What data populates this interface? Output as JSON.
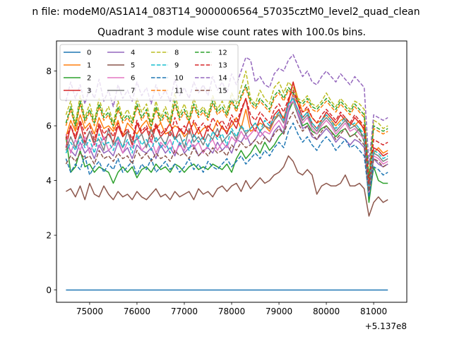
{
  "figure": {
    "suptitle": "n file: modeM0/AS1A14_083T14_9000006564_57035cztM0_level2_quad_clean",
    "title": "Quadrant 3 module wise count rates with 100.0s bins."
  },
  "chart_data": {
    "type": "line",
    "title": "Quadrant 3 module wise count rates with 100.0s bins.",
    "xlabel": "",
    "ylabel": "",
    "x_offset_label": "+5.137e8",
    "xlim": [
      74300,
      81700
    ],
    "ylim": [
      -0.45,
      9.1
    ],
    "xticks": [
      75000,
      76000,
      77000,
      78000,
      79000,
      80000,
      81000
    ],
    "xtick_labels": [
      "75000",
      "76000",
      "77000",
      "78000",
      "79000",
      "80000",
      "81000"
    ],
    "yticks": [
      0,
      2,
      4,
      6,
      8
    ],
    "ytick_labels": [
      "0",
      "2",
      "4",
      "6",
      "8"
    ],
    "grid": false,
    "legend_position": "upper-left",
    "x_start": 74500,
    "x_step": 100,
    "series": [
      {
        "name": "0",
        "color": "#1f77b4",
        "dash": "solid",
        "values": [
          0,
          0,
          0,
          0,
          0,
          0,
          0,
          0,
          0,
          0,
          0,
          0,
          0,
          0,
          0,
          0,
          0,
          0,
          0,
          0,
          0,
          0,
          0,
          0,
          0,
          0,
          0,
          0,
          0,
          0,
          0,
          0,
          0,
          0,
          0,
          0,
          0,
          0,
          0,
          0,
          0,
          0,
          0,
          0,
          0,
          0,
          0,
          0,
          0,
          0,
          0,
          0,
          0,
          0,
          0,
          0,
          0,
          0,
          0,
          0,
          0,
          0,
          0,
          0,
          0,
          0,
          0,
          0,
          0
        ]
      },
      {
        "name": "1",
        "color": "#ff7f0e",
        "dash": "solid",
        "values": [
          5.6,
          6.2,
          5.8,
          6.4,
          5.9,
          6.1,
          5.7,
          6.3,
          5.9,
          6.0,
          5.8,
          6.2,
          5.6,
          6.1,
          5.9,
          5.7,
          6.0,
          6.2,
          5.8,
          5.9,
          6.1,
          5.7,
          5.8,
          6.0,
          5.9,
          5.6,
          5.8,
          6.1,
          5.7,
          5.9,
          6.0,
          5.8,
          6.2,
          5.9,
          5.8,
          6.0,
          6.3,
          5.9,
          6.6,
          5.8,
          5.9,
          6.1,
          6.0,
          5.8,
          6.2,
          6.5,
          6.3,
          6.8,
          7.6,
          7.0,
          6.5,
          6.6,
          6.3,
          6.1,
          6.2,
          6.4,
          6.2,
          6.0,
          6.2,
          6.3,
          6.1,
          6.0,
          6.2,
          5.8,
          3.6,
          5.0,
          5.2,
          5.0,
          5.1
        ]
      },
      {
        "name": "2",
        "color": "#2ca02c",
        "dash": "solid",
        "values": [
          5.6,
          4.3,
          4.5,
          5.1,
          4.5,
          4.6,
          4.3,
          4.5,
          4.4,
          4.3,
          3.9,
          4.3,
          4.5,
          4.3,
          4.5,
          4.1,
          4.4,
          4.5,
          4.3,
          4.6,
          4.4,
          4.5,
          4.3,
          4.6,
          4.5,
          4.3,
          4.5,
          4.6,
          4.4,
          4.5,
          4.4,
          4.6,
          4.5,
          4.4,
          4.6,
          4.3,
          4.8,
          5.1,
          4.8,
          5.0,
          5.3,
          5.0,
          5.4,
          5.1,
          5.3,
          5.6,
          5.8,
          6.5,
          6.9,
          6.4,
          6.0,
          6.1,
          5.8,
          5.7,
          5.9,
          6.0,
          5.8,
          5.6,
          5.8,
          5.9,
          5.6,
          5.7,
          5.9,
          5.4,
          3.2,
          4.5,
          4.0,
          3.9,
          3.9
        ]
      },
      {
        "name": "3",
        "color": "#d62728",
        "dash": "solid",
        "values": [
          5.2,
          6.0,
          5.5,
          6.1,
          5.4,
          5.8,
          5.3,
          6.0,
          5.5,
          5.7,
          5.4,
          6.0,
          5.6,
          5.8,
          5.3,
          6.1,
          5.7,
          5.9,
          5.4,
          6.0,
          5.6,
          5.8,
          6.1,
          5.5,
          5.9,
          5.7,
          6.2,
          5.6,
          5.9,
          5.5,
          6.0,
          5.8,
          5.6,
          6.0,
          5.7,
          6.2,
          5.9,
          6.5,
          7.0,
          6.1,
          5.8,
          6.3,
          6.0,
          5.9,
          6.4,
          6.6,
          6.2,
          6.9,
          7.6,
          6.8,
          6.3,
          6.5,
          6.1,
          5.9,
          6.2,
          6.5,
          6.3,
          6.1,
          6.4,
          6.2,
          6.0,
          6.3,
          6.1,
          5.9,
          3.8,
          5.2,
          5.1,
          4.9,
          5.0
        ]
      },
      {
        "name": "4",
        "color": "#9467bd",
        "dash": "solid",
        "values": [
          5.3,
          5.1,
          4.9,
          5.4,
          5.0,
          5.2,
          4.8,
          5.3,
          5.0,
          5.1,
          4.9,
          5.4,
          5.0,
          5.2,
          4.8,
          5.3,
          5.1,
          5.0,
          5.2,
          4.8,
          5.3,
          5.0,
          5.2,
          4.9,
          5.4,
          5.0,
          5.2,
          5.3,
          4.9,
          5.1,
          5.2,
          5.0,
          5.4,
          5.1,
          5.3,
          5.0,
          5.5,
          5.4,
          5.7,
          5.3,
          5.5,
          5.8,
          5.6,
          5.4,
          5.8,
          6.0,
          5.7,
          6.5,
          7.2,
          6.4,
          5.9,
          6.0,
          5.6,
          5.5,
          5.7,
          5.9,
          5.7,
          5.4,
          5.6,
          5.5,
          5.3,
          5.5,
          5.4,
          5.2,
          3.5,
          4.8,
          4.6,
          4.5,
          4.6
        ]
      },
      {
        "name": "5",
        "color": "#8c564b",
        "dash": "solid",
        "values": [
          3.6,
          3.7,
          3.4,
          3.8,
          3.3,
          3.9,
          3.5,
          3.4,
          3.8,
          3.5,
          3.3,
          3.6,
          3.4,
          3.5,
          3.3,
          3.6,
          3.4,
          3.3,
          3.5,
          3.7,
          3.4,
          3.5,
          3.3,
          3.6,
          3.4,
          3.5,
          3.6,
          3.3,
          3.7,
          3.5,
          3.6,
          3.4,
          3.7,
          3.8,
          3.6,
          3.8,
          3.9,
          3.6,
          4.0,
          3.7,
          3.9,
          4.1,
          3.9,
          4.0,
          4.2,
          4.3,
          4.5,
          4.9,
          4.7,
          4.3,
          4.2,
          4.4,
          4.2,
          3.5,
          3.8,
          3.9,
          3.8,
          3.8,
          3.9,
          4.2,
          3.8,
          3.8,
          3.9,
          3.7,
          2.7,
          3.2,
          3.4,
          3.2,
          3.3
        ]
      },
      {
        "name": "6",
        "color": "#e377c2",
        "dash": "solid",
        "values": [
          5.7,
          5.0,
          5.5,
          5.1,
          5.6,
          5.0,
          5.4,
          5.2,
          5.6,
          5.1,
          5.3,
          5.5,
          5.0,
          5.4,
          5.2,
          5.6,
          5.1,
          5.3,
          5.5,
          5.0,
          5.4,
          5.2,
          5.5,
          5.0,
          5.3,
          5.1,
          5.5,
          5.2,
          5.4,
          5.0,
          5.3,
          5.5,
          5.1,
          5.4,
          5.2,
          5.6,
          5.4,
          5.8,
          5.5,
          5.7,
          5.9,
          5.6,
          5.8,
          5.7,
          6.0,
          6.2,
          5.9,
          6.7,
          6.9,
          6.5,
          6.1,
          6.3,
          5.9,
          5.7,
          6.0,
          6.2,
          6.0,
          5.7,
          5.9,
          6.1,
          5.8,
          5.9,
          5.7,
          5.5,
          3.5,
          4.9,
          4.8,
          4.6,
          4.7
        ]
      },
      {
        "name": "7",
        "color": "#7f7f7f",
        "dash": "solid",
        "values": [
          5.1,
          5.6,
          5.2,
          5.7,
          5.3,
          5.8,
          5.4,
          5.5,
          5.1,
          5.9,
          5.3,
          5.6,
          5.2,
          5.8,
          5.4,
          5.5,
          5.7,
          5.2,
          5.9,
          5.4,
          5.6,
          5.3,
          5.8,
          5.5,
          5.7,
          5.2,
          5.9,
          5.4,
          5.6,
          5.3,
          5.7,
          5.5,
          5.9,
          5.4,
          5.6,
          5.8,
          5.5,
          6.0,
          5.7,
          5.9,
          6.1,
          5.8,
          6.0,
          5.9,
          6.2,
          6.4,
          6.1,
          6.8,
          7.0,
          6.6,
          6.2,
          6.4,
          6.0,
          5.8,
          6.1,
          6.3,
          6.1,
          5.8,
          6.0,
          6.2,
          5.9,
          6.0,
          5.8,
          5.6,
          3.7,
          5.0,
          4.9,
          4.7,
          4.8
        ]
      },
      {
        "name": "8",
        "color": "#bcbd22",
        "dash": "dashed",
        "values": [
          6.4,
          6.9,
          6.1,
          7.1,
          6.3,
          6.8,
          6.2,
          7.0,
          6.4,
          6.7,
          6.1,
          6.9,
          6.3,
          6.6,
          6.2,
          7.0,
          6.5,
          6.8,
          6.1,
          6.9,
          6.3,
          6.7,
          6.2,
          7.2,
          6.4,
          6.8,
          6.3,
          7.0,
          6.5,
          6.7,
          6.4,
          7.1,
          6.6,
          6.9,
          6.5,
          7.2,
          6.8,
          7.4,
          8.0,
          7.0,
          6.8,
          7.3,
          7.0,
          6.8,
          7.4,
          7.6,
          7.2,
          7.6,
          7.4,
          7.0,
          6.9,
          7.1,
          6.8,
          6.7,
          6.9,
          7.2,
          6.9,
          6.7,
          7.0,
          6.8,
          6.6,
          6.9,
          6.8,
          6.6,
          4.0,
          6.2,
          6.1,
          5.9,
          6.0
        ]
      },
      {
        "name": "9",
        "color": "#17becf",
        "dash": "dashed",
        "values": [
          5.0,
          5.4,
          5.1,
          5.6,
          5.2,
          5.5,
          5.0,
          5.7,
          5.3,
          5.4,
          5.1,
          5.6,
          5.2,
          5.5,
          5.0,
          5.7,
          5.3,
          5.5,
          5.1,
          5.6,
          5.2,
          5.4,
          5.0,
          5.6,
          5.3,
          5.5,
          5.1,
          5.7,
          5.4,
          5.6,
          5.2,
          5.8,
          5.5,
          5.7,
          5.3,
          5.9,
          5.6,
          6.0,
          5.8,
          5.9,
          6.1,
          5.8,
          6.2,
          6.0,
          6.3,
          6.5,
          6.2,
          6.8,
          7.0,
          6.6,
          6.3,
          6.5,
          6.1,
          5.9,
          6.2,
          6.4,
          6.2,
          5.9,
          6.1,
          6.3,
          6.0,
          6.1,
          5.9,
          5.7,
          3.8,
          5.1,
          5.0,
          4.8,
          4.9
        ]
      },
      {
        "name": "10",
        "color": "#1f77b4",
        "dash": "dashed",
        "values": [
          4.8,
          4.3,
          4.6,
          4.4,
          4.9,
          4.2,
          4.5,
          4.7,
          4.3,
          4.6,
          4.4,
          4.8,
          4.3,
          4.5,
          4.7,
          4.2,
          4.6,
          4.4,
          4.8,
          4.3,
          4.5,
          4.7,
          4.4,
          4.6,
          4.3,
          4.5,
          4.8,
          4.4,
          4.6,
          4.3,
          4.7,
          4.5,
          4.4,
          4.6,
          4.8,
          4.5,
          4.7,
          4.9,
          4.6,
          4.8,
          5.0,
          4.8,
          5.1,
          4.9,
          5.2,
          5.4,
          5.2,
          5.8,
          6.1,
          5.7,
          5.4,
          5.6,
          5.3,
          5.1,
          5.4,
          5.6,
          5.4,
          5.1,
          5.3,
          5.5,
          5.2,
          5.3,
          5.1,
          4.9,
          3.4,
          4.5,
          4.4,
          4.2,
          4.3
        ]
      },
      {
        "name": "11",
        "color": "#ff7f0e",
        "dash": "dashed",
        "values": [
          6.0,
          6.6,
          5.9,
          6.8,
          6.1,
          6.5,
          6.0,
          6.7,
          6.2,
          6.4,
          5.9,
          6.6,
          6.1,
          6.3,
          6.0,
          6.7,
          6.2,
          6.5,
          5.9,
          6.6,
          6.1,
          6.4,
          6.0,
          6.8,
          6.2,
          6.5,
          6.1,
          6.7,
          6.3,
          6.5,
          6.2,
          6.8,
          6.4,
          6.6,
          6.3,
          6.9,
          6.5,
          7.0,
          7.4,
          6.8,
          6.6,
          6.9,
          6.7,
          6.5,
          7.0,
          7.2,
          6.9,
          7.3,
          7.1,
          6.8,
          6.7,
          6.9,
          6.6,
          6.5,
          6.7,
          6.9,
          6.7,
          6.5,
          6.8,
          6.6,
          6.4,
          6.7,
          6.5,
          6.3,
          4.0,
          5.9,
          5.8,
          5.7,
          5.8
        ]
      },
      {
        "name": "12",
        "color": "#2ca02c",
        "dash": "dashed",
        "values": [
          6.1,
          6.7,
          6.0,
          6.9,
          6.2,
          6.6,
          6.1,
          6.8,
          6.3,
          6.5,
          6.0,
          6.7,
          6.2,
          6.4,
          6.1,
          6.8,
          6.3,
          6.6,
          6.0,
          6.7,
          6.2,
          6.5,
          6.1,
          6.9,
          6.3,
          6.6,
          6.2,
          6.8,
          6.4,
          6.6,
          6.3,
          6.9,
          6.5,
          6.7,
          6.4,
          7.0,
          6.6,
          7.1,
          7.5,
          6.9,
          6.7,
          7.0,
          6.8,
          6.6,
          7.1,
          7.3,
          7.0,
          7.4,
          7.2,
          6.9,
          6.8,
          7.0,
          6.7,
          6.6,
          6.8,
          7.0,
          6.8,
          6.6,
          6.9,
          6.7,
          6.5,
          6.8,
          6.6,
          6.4,
          4.1,
          6.0,
          5.9,
          5.8,
          5.9
        ]
      },
      {
        "name": "13",
        "color": "#d62728",
        "dash": "dashed",
        "values": [
          5.5,
          6.0,
          5.6,
          6.2,
          5.7,
          6.0,
          5.5,
          6.1,
          5.7,
          5.9,
          5.6,
          6.1,
          5.7,
          5.9,
          5.5,
          6.2,
          5.8,
          6.0,
          5.6,
          6.1,
          5.7,
          5.9,
          5.6,
          6.3,
          5.8,
          6.0,
          5.7,
          6.2,
          5.9,
          6.1,
          5.8,
          6.3,
          6.0,
          6.2,
          5.9,
          6.4,
          6.1,
          6.6,
          7.0,
          6.4,
          6.2,
          6.5,
          6.3,
          6.1,
          6.6,
          6.8,
          6.5,
          7.0,
          7.3,
          6.8,
          6.5,
          6.7,
          6.3,
          6.1,
          6.4,
          6.6,
          6.4,
          6.2,
          6.5,
          6.3,
          6.1,
          6.4,
          6.2,
          6.0,
          3.9,
          5.5,
          5.4,
          5.3,
          5.4
        ]
      },
      {
        "name": "14",
        "color": "#9467bd",
        "dash": "dashed",
        "values": [
          6.9,
          7.6,
          7.0,
          7.5,
          6.8,
          7.4,
          7.0,
          7.7,
          6.9,
          7.3,
          6.7,
          7.5,
          7.0,
          7.3,
          6.9,
          7.6,
          7.1,
          7.4,
          6.8,
          7.5,
          7.0,
          7.3,
          6.9,
          7.7,
          7.1,
          7.4,
          7.0,
          7.6,
          7.2,
          7.5,
          7.1,
          7.8,
          7.3,
          7.6,
          7.2,
          7.9,
          7.5,
          8.0,
          8.5,
          8.4,
          7.6,
          7.8,
          7.5,
          7.4,
          7.9,
          8.1,
          8.0,
          8.4,
          8.6,
          8.2,
          7.8,
          8.0,
          7.6,
          7.5,
          7.8,
          8.0,
          7.8,
          7.6,
          7.9,
          7.7,
          7.5,
          7.8,
          7.6,
          7.4,
          4.6,
          6.4,
          6.3,
          6.2,
          6.3
        ]
      },
      {
        "name": "15",
        "color": "#8c564b",
        "dash": "dashed",
        "values": [
          4.6,
          4.9,
          4.7,
          5.0,
          4.8,
          4.9,
          4.6,
          5.1,
          4.8,
          4.9,
          4.7,
          5.0,
          4.8,
          4.9,
          4.6,
          5.1,
          4.8,
          5.0,
          4.7,
          5.0,
          4.8,
          4.9,
          4.7,
          5.1,
          4.9,
          5.0,
          4.8,
          5.2,
          4.9,
          5.1,
          4.9,
          5.2,
          5.0,
          5.1,
          4.9,
          5.3,
          5.1,
          5.4,
          5.2,
          5.3,
          5.5,
          5.3,
          5.6,
          5.4,
          5.7,
          5.9,
          5.7,
          6.2,
          6.5,
          6.1,
          5.8,
          6.0,
          5.7,
          5.5,
          5.8,
          6.0,
          5.8,
          5.5,
          5.7,
          5.9,
          5.6,
          5.7,
          5.5,
          5.3,
          3.6,
          4.8,
          4.7,
          4.5,
          4.6
        ]
      }
    ]
  }
}
